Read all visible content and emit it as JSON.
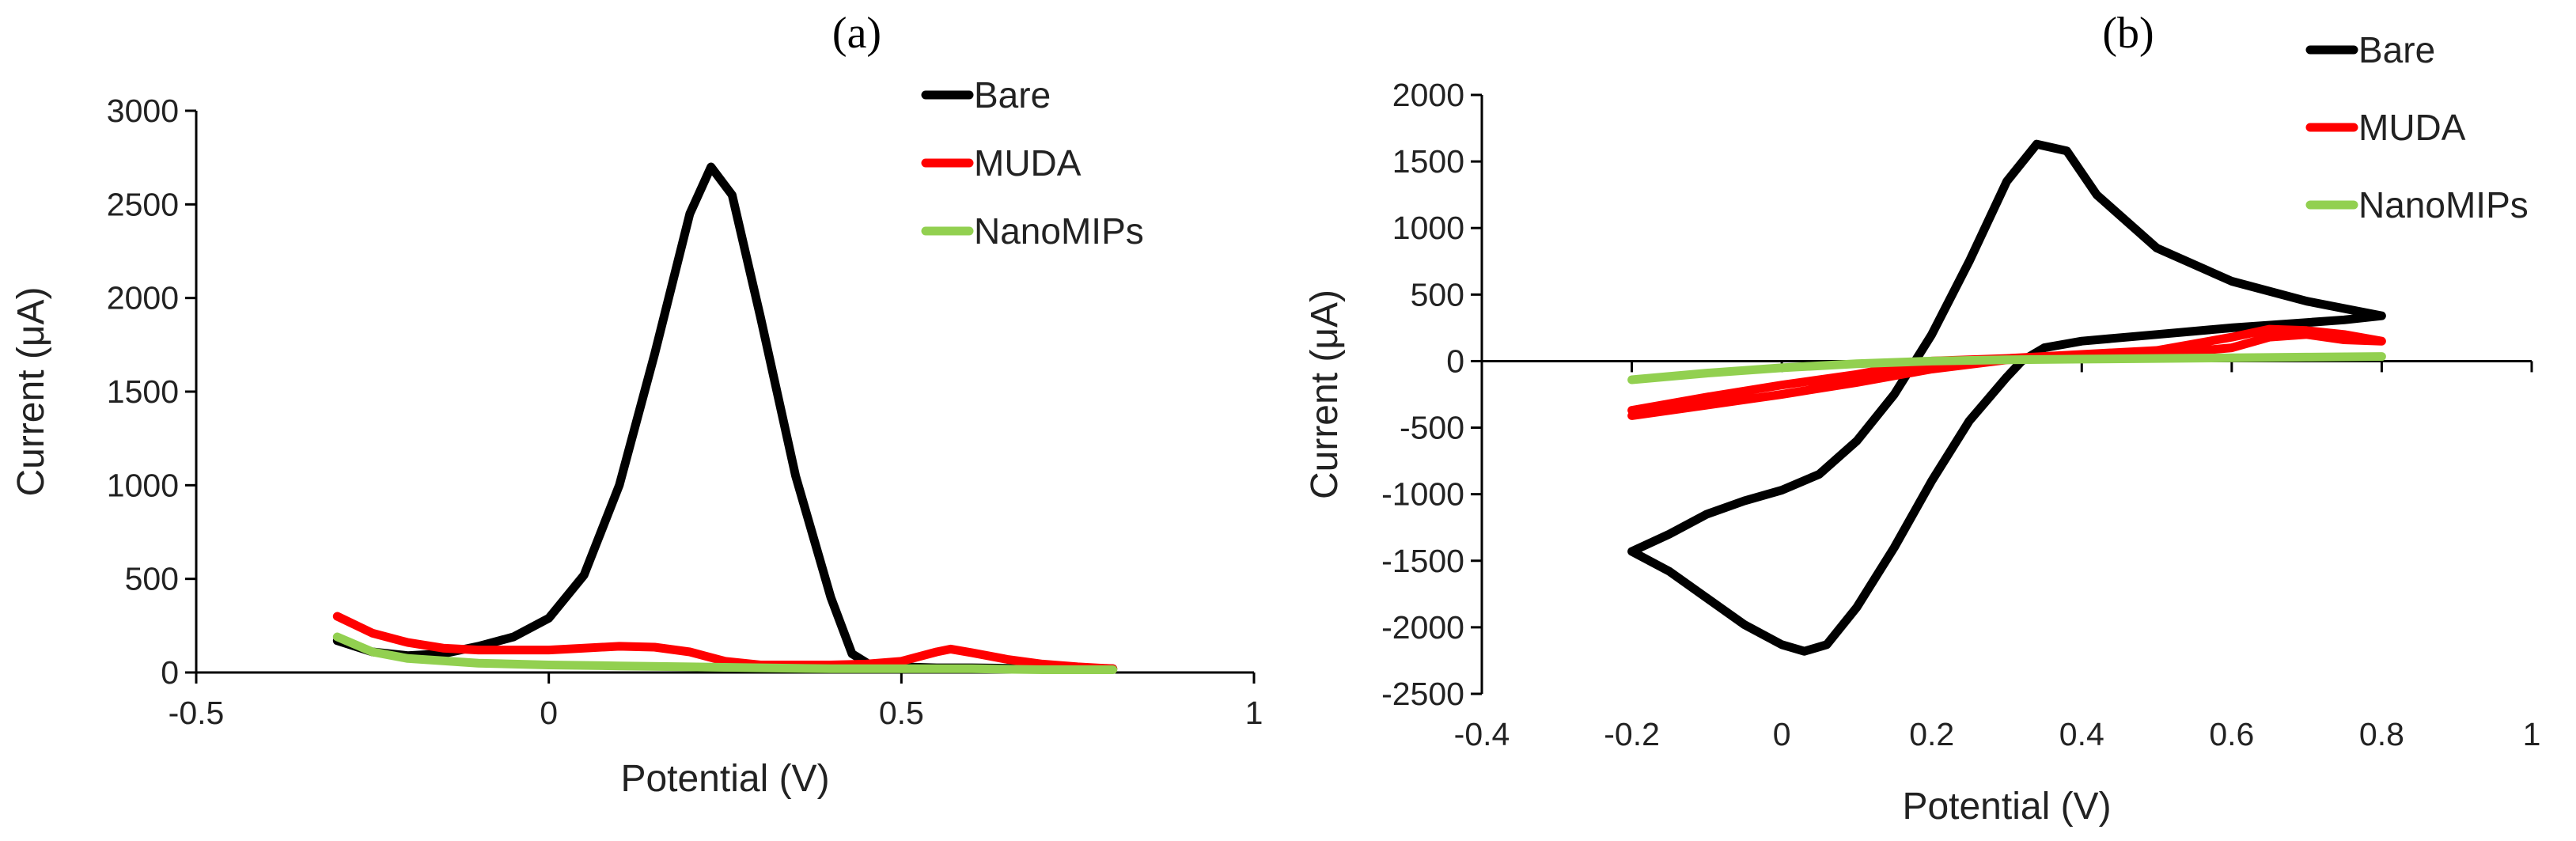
{
  "chart_data": [
    {
      "panel": "(a)",
      "type": "line",
      "xlabel": "Potential (V)",
      "ylabel": "Current (μA)",
      "xlim": [
        -0.5,
        1
      ],
      "ylim": [
        0,
        3000
      ],
      "xticks": [
        -0.5,
        0,
        0.5,
        1
      ],
      "yticks": [
        0,
        500,
        1000,
        1500,
        2000,
        2500,
        3000
      ],
      "xtick_labels": [
        "-0.5",
        "0",
        "0.5",
        "1"
      ],
      "ytick_labels": [
        "0",
        "500",
        "1000",
        "1500",
        "2000",
        "2500",
        "3000"
      ],
      "legend_position": "top-right",
      "series": [
        {
          "name": "Bare",
          "color": "#000000",
          "points": [
            [
              -0.3,
              170
            ],
            [
              -0.25,
              110
            ],
            [
              -0.2,
              90
            ],
            [
              -0.15,
              100
            ],
            [
              -0.1,
              140
            ],
            [
              -0.05,
              190
            ],
            [
              0,
              290
            ],
            [
              0.05,
              520
            ],
            [
              0.1,
              1000
            ],
            [
              0.15,
              1700
            ],
            [
              0.2,
              2450
            ],
            [
              0.23,
              2700
            ],
            [
              0.26,
              2550
            ],
            [
              0.3,
              1900
            ],
            [
              0.35,
              1050
            ],
            [
              0.4,
              400
            ],
            [
              0.43,
              100
            ],
            [
              0.46,
              30
            ],
            [
              0.5,
              30
            ],
            [
              0.55,
              25
            ],
            [
              0.6,
              25
            ],
            [
              0.7,
              20
            ],
            [
              0.8,
              20
            ]
          ]
        },
        {
          "name": "MUDA",
          "color": "#ff0000",
          "points": [
            [
              -0.3,
              300
            ],
            [
              -0.25,
              210
            ],
            [
              -0.2,
              160
            ],
            [
              -0.15,
              130
            ],
            [
              -0.1,
              120
            ],
            [
              -0.05,
              120
            ],
            [
              0,
              120
            ],
            [
              0.05,
              130
            ],
            [
              0.1,
              140
            ],
            [
              0.15,
              135
            ],
            [
              0.2,
              110
            ],
            [
              0.25,
              60
            ],
            [
              0.3,
              40
            ],
            [
              0.35,
              40
            ],
            [
              0.4,
              40
            ],
            [
              0.45,
              45
            ],
            [
              0.5,
              60
            ],
            [
              0.55,
              110
            ],
            [
              0.57,
              125
            ],
            [
              0.6,
              105
            ],
            [
              0.65,
              70
            ],
            [
              0.7,
              45
            ],
            [
              0.75,
              30
            ],
            [
              0.8,
              20
            ]
          ]
        },
        {
          "name": "NanoMIPs",
          "color": "#92d050",
          "points": [
            [
              -0.3,
              190
            ],
            [
              -0.25,
              110
            ],
            [
              -0.2,
              75
            ],
            [
              -0.1,
              50
            ],
            [
              0,
              40
            ],
            [
              0.1,
              35
            ],
            [
              0.2,
              30
            ],
            [
              0.3,
              25
            ],
            [
              0.4,
              20
            ],
            [
              0.5,
              20
            ],
            [
              0.6,
              20
            ],
            [
              0.7,
              15
            ],
            [
              0.8,
              15
            ]
          ]
        }
      ]
    },
    {
      "panel": "(b)",
      "type": "line",
      "xlabel": "Potential (V)",
      "ylabel": "Current (μA)",
      "xlim": [
        -0.4,
        1
      ],
      "ylim": [
        -2500,
        2000
      ],
      "xticks": [
        -0.4,
        -0.2,
        0,
        0.2,
        0.4,
        0.6,
        0.8,
        1
      ],
      "yticks": [
        -2500,
        -2000,
        -1500,
        -1000,
        -500,
        0,
        500,
        1000,
        1500,
        2000
      ],
      "xtick_labels": [
        "-0.4",
        "-0.2",
        "0",
        "0.2",
        "0.4",
        "0.6",
        "0.8",
        "1"
      ],
      "ytick_labels": [
        "-2500",
        "-2000",
        "-1500",
        "-1000",
        "-500",
        "0",
        "500",
        "1000",
        "1500",
        "2000"
      ],
      "legend_position": "top-right",
      "series": [
        {
          "name": "Bare",
          "color": "#000000",
          "points": [
            [
              -0.2,
              -1430
            ],
            [
              -0.15,
              -1300
            ],
            [
              -0.1,
              -1150
            ],
            [
              -0.05,
              -1050
            ],
            [
              0,
              -970
            ],
            [
              0.05,
              -850
            ],
            [
              0.1,
              -600
            ],
            [
              0.15,
              -250
            ],
            [
              0.2,
              200
            ],
            [
              0.25,
              750
            ],
            [
              0.3,
              1350
            ],
            [
              0.34,
              1630
            ],
            [
              0.38,
              1580
            ],
            [
              0.42,
              1250
            ],
            [
              0.5,
              850
            ],
            [
              0.6,
              600
            ],
            [
              0.7,
              450
            ],
            [
              0.8,
              340
            ],
            [
              0.75,
              310
            ],
            [
              0.7,
              290
            ],
            [
              0.6,
              250
            ],
            [
              0.5,
              200
            ],
            [
              0.4,
              150
            ],
            [
              0.35,
              100
            ],
            [
              0.32,
              0
            ],
            [
              0.3,
              -120
            ],
            [
              0.25,
              -450
            ],
            [
              0.2,
              -900
            ],
            [
              0.15,
              -1400
            ],
            [
              0.1,
              -1850
            ],
            [
              0.06,
              -2130
            ],
            [
              0.03,
              -2180
            ],
            [
              0,
              -2130
            ],
            [
              -0.05,
              -1980
            ],
            [
              -0.1,
              -1780
            ],
            [
              -0.15,
              -1580
            ],
            [
              -0.2,
              -1430
            ]
          ]
        },
        {
          "name": "MUDA",
          "color": "#ff0000",
          "points": [
            [
              -0.2,
              -410
            ],
            [
              -0.1,
              -330
            ],
            [
              0,
              -250
            ],
            [
              0.1,
              -160
            ],
            [
              0.2,
              -60
            ],
            [
              0.3,
              10
            ],
            [
              0.4,
              30
            ],
            [
              0.5,
              50
            ],
            [
              0.6,
              100
            ],
            [
              0.65,
              180
            ],
            [
              0.7,
              200
            ],
            [
              0.75,
              160
            ],
            [
              0.8,
              150
            ],
            [
              0.75,
              200
            ],
            [
              0.7,
              230
            ],
            [
              0.65,
              240
            ],
            [
              0.6,
              180
            ],
            [
              0.5,
              80
            ],
            [
              0.4,
              50
            ],
            [
              0.3,
              20
            ],
            [
              0.2,
              0
            ],
            [
              0.1,
              -100
            ],
            [
              0,
              -180
            ],
            [
              -0.1,
              -270
            ],
            [
              -0.2,
              -370
            ]
          ]
        },
        {
          "name": "NanoMIPs",
          "color": "#92d050",
          "points": [
            [
              -0.2,
              -140
            ],
            [
              -0.1,
              -90
            ],
            [
              0,
              -50
            ],
            [
              0.1,
              -20
            ],
            [
              0.2,
              0
            ],
            [
              0.3,
              10
            ],
            [
              0.4,
              15
            ],
            [
              0.5,
              20
            ],
            [
              0.6,
              25
            ],
            [
              0.7,
              30
            ],
            [
              0.8,
              35
            ]
          ]
        }
      ]
    }
  ]
}
